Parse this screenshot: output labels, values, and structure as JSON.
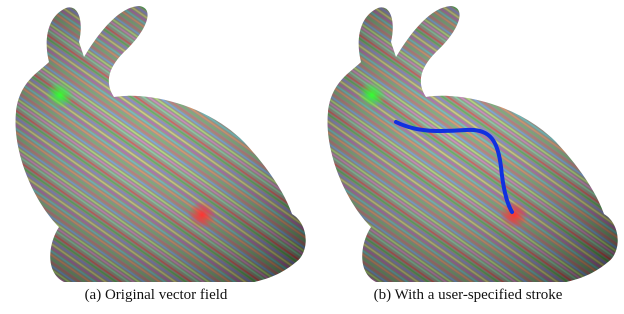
{
  "figure": {
    "panels": [
      {
        "caption": "(a) Original vector field"
      },
      {
        "caption": "(b) With a user-specified stroke"
      }
    ]
  }
}
